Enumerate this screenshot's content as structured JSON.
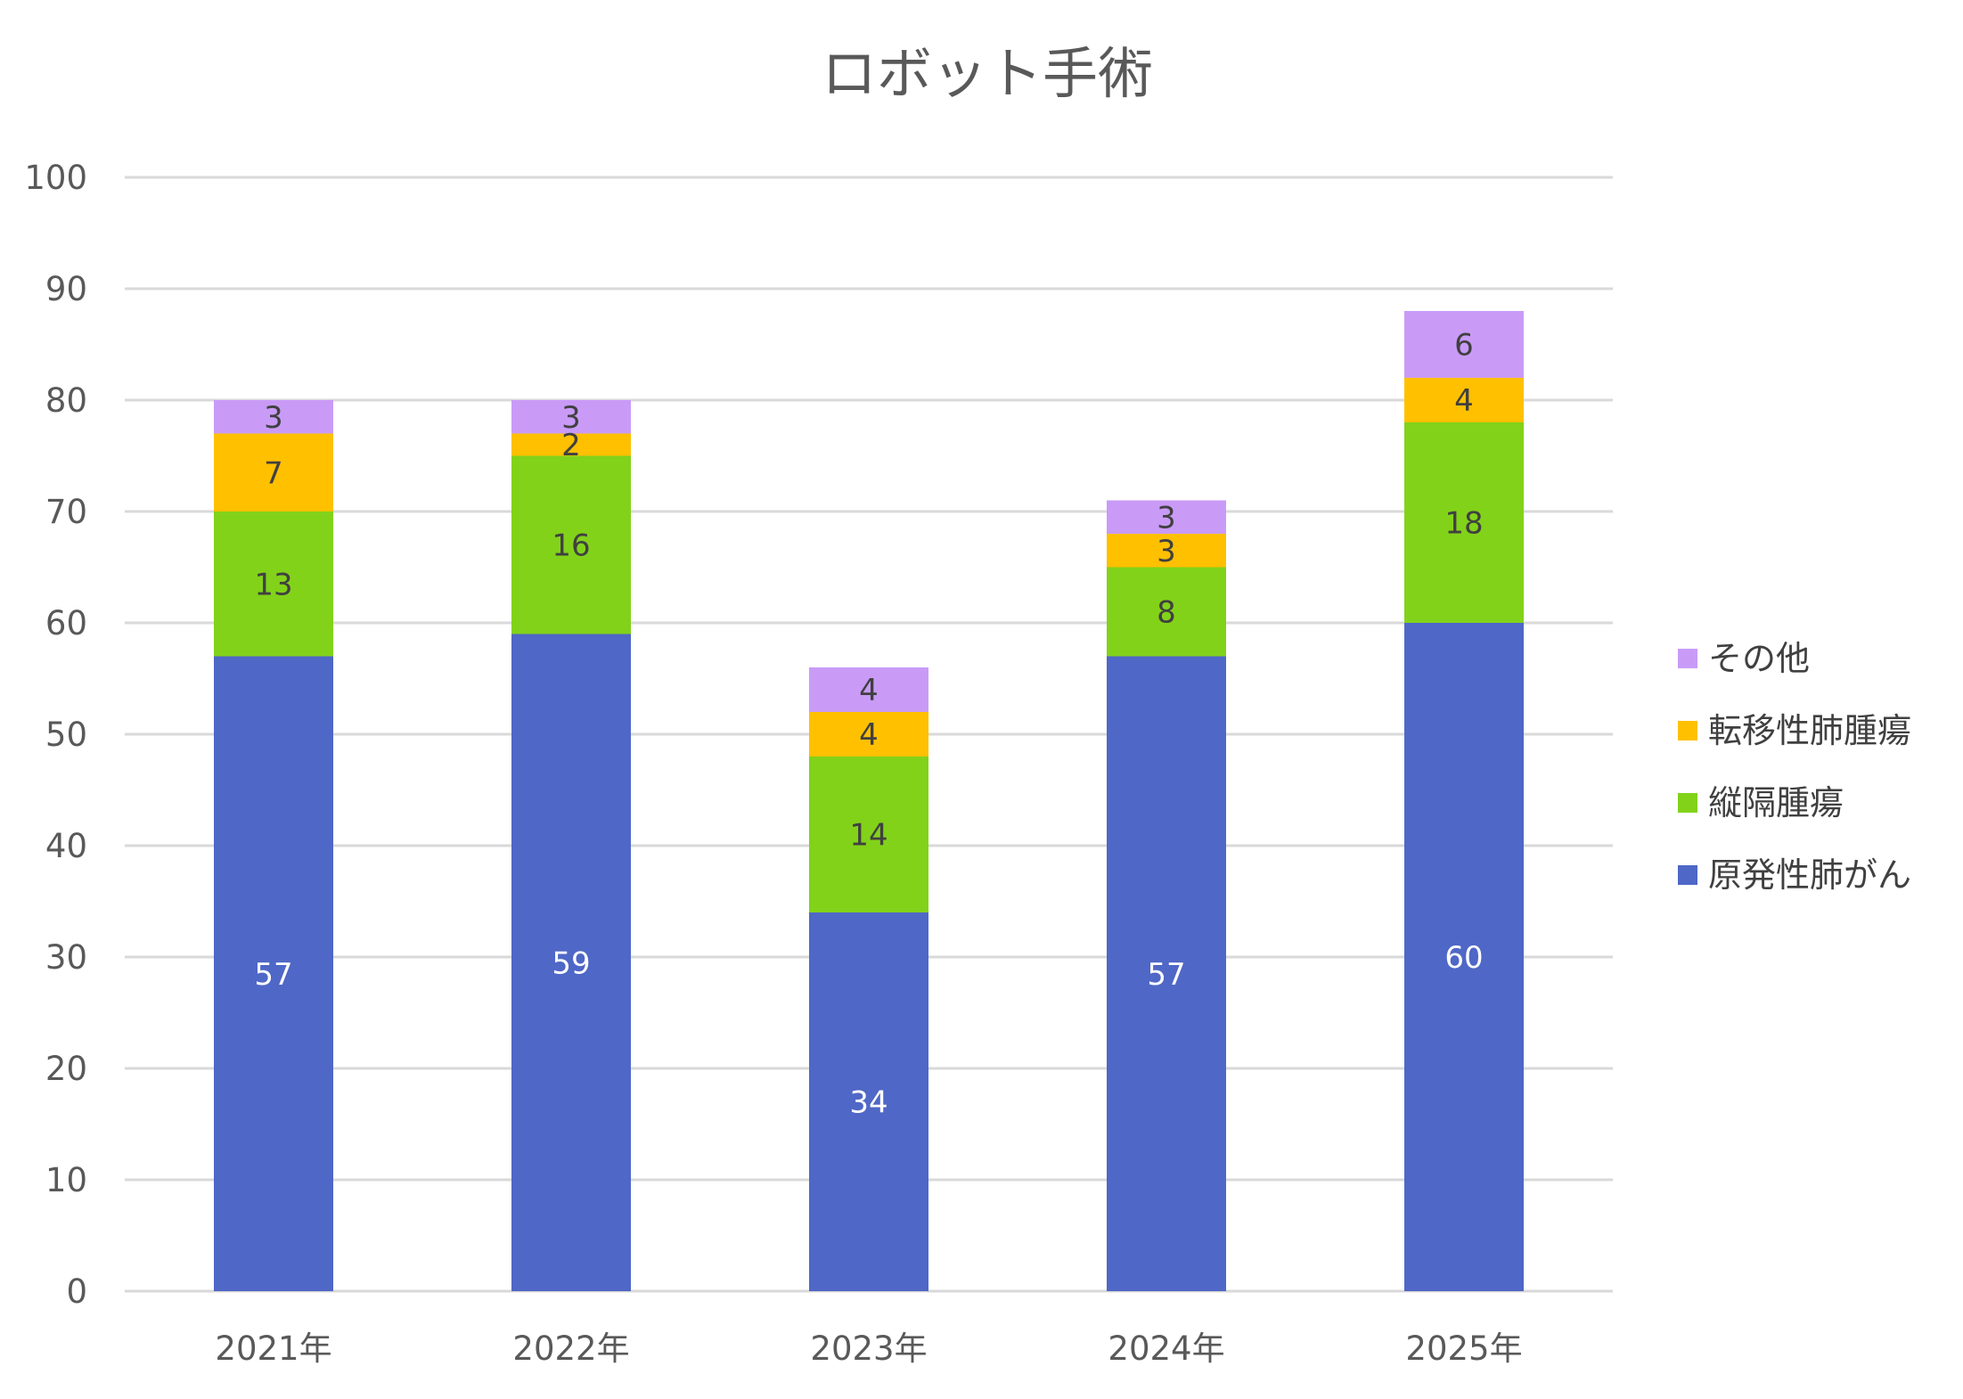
{
  "chart_data": {
    "type": "bar",
    "stacked": true,
    "title": "ロボット手術",
    "xlabel": "",
    "ylabel": "",
    "categories": [
      "2021年",
      "2022年",
      "2023年",
      "2024年",
      "2025年"
    ],
    "ylim": [
      0,
      100
    ],
    "yticks": [
      0,
      10,
      20,
      30,
      40,
      50,
      60,
      70,
      80,
      90,
      100
    ],
    "grid": true,
    "legend_position": "right",
    "series": [
      {
        "name": "原発性肺がん",
        "color": "#4F67C6",
        "label_color": "#FFFFFF",
        "values": [
          57,
          59,
          34,
          57,
          60
        ]
      },
      {
        "name": "縦隔腫瘍",
        "color": "#82D21A",
        "label_color": "#404040",
        "values": [
          13,
          16,
          14,
          8,
          18
        ]
      },
      {
        "name": "転移性肺腫瘍",
        "color": "#FFC000",
        "label_color": "#404040",
        "values": [
          7,
          2,
          4,
          3,
          4
        ]
      },
      {
        "name": "その他",
        "color": "#C99BF7",
        "label_color": "#404040",
        "values": [
          3,
          3,
          4,
          3,
          6
        ]
      }
    ]
  }
}
